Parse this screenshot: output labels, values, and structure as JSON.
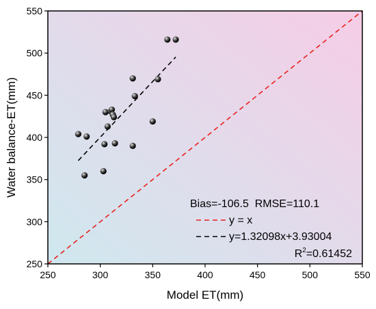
{
  "chart_data": {
    "type": "scatter",
    "xlabel": "Model ET(mm)",
    "ylabel": "Water balance-ET(mm)",
    "xlim": [
      250,
      550
    ],
    "ylim": [
      250,
      550
    ],
    "xticks": [
      "250",
      "300",
      "350",
      "400",
      "450",
      "500",
      "550"
    ],
    "yticks": [
      "250",
      "300",
      "350",
      "400",
      "450",
      "500",
      "550"
    ],
    "background_gradient": {
      "corner_bottom_left": "#cfe8ef",
      "corner_top_right": "#f6cde6"
    },
    "points": [
      {
        "x": 279,
        "y": 404
      },
      {
        "x": 285,
        "y": 355
      },
      {
        "x": 287,
        "y": 401
      },
      {
        "x": 303,
        "y": 360
      },
      {
        "x": 304,
        "y": 392
      },
      {
        "x": 305,
        "y": 430
      },
      {
        "x": 307,
        "y": 413
      },
      {
        "x": 310,
        "y": 431
      },
      {
        "x": 311,
        "y": 433
      },
      {
        "x": 312,
        "y": 427
      },
      {
        "x": 313,
        "y": 424
      },
      {
        "x": 314,
        "y": 393
      },
      {
        "x": 331,
        "y": 470
      },
      {
        "x": 331,
        "y": 390
      },
      {
        "x": 333,
        "y": 449
      },
      {
        "x": 350,
        "y": 419
      },
      {
        "x": 355,
        "y": 469
      },
      {
        "x": 364,
        "y": 516
      },
      {
        "x": 372,
        "y": 516
      }
    ],
    "series": [
      {
        "name": "y = x",
        "style": "dashed",
        "color": "#e8201c",
        "slope": 1,
        "intercept": 0,
        "x_range": [
          250,
          550
        ]
      },
      {
        "name": "y=1.32098x+3.93004",
        "style": "dashed",
        "color": "#000000",
        "slope": 1.32098,
        "intercept": 3.93004,
        "x_range": [
          279,
          372
        ]
      }
    ],
    "annotation": "Bias=-106.5  RMSE=110.1",
    "r2_label": "R",
    "r2_sup": "2",
    "r2_value": "=0.61452",
    "legend_position": "bottom-right",
    "grid": false
  }
}
